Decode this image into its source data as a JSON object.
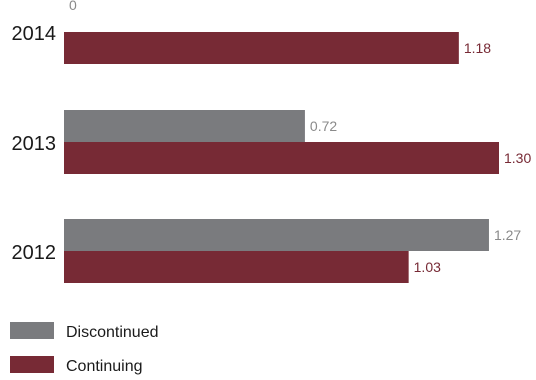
{
  "chart_data": {
    "type": "bar",
    "orientation": "horizontal",
    "categories": [
      "2014",
      "2013",
      "2012"
    ],
    "series": [
      {
        "name": "Discontinued",
        "values": [
          0,
          0.72,
          1.27
        ],
        "labels": [
          "0",
          "0.72",
          "1.27"
        ],
        "color": "#7a7b7e",
        "label_color": "#8a8a8a"
      },
      {
        "name": "Continuing",
        "values": [
          1.18,
          1.3,
          1.03
        ],
        "labels": [
          "1.18",
          "1.30",
          "1.03"
        ],
        "color": "#772a35",
        "label_color": "#772a35"
      }
    ],
    "title": "",
    "xlabel": "",
    "ylabel": "",
    "xlim": [
      0,
      1.3
    ],
    "grid": false,
    "legend_position": "bottom-left"
  }
}
